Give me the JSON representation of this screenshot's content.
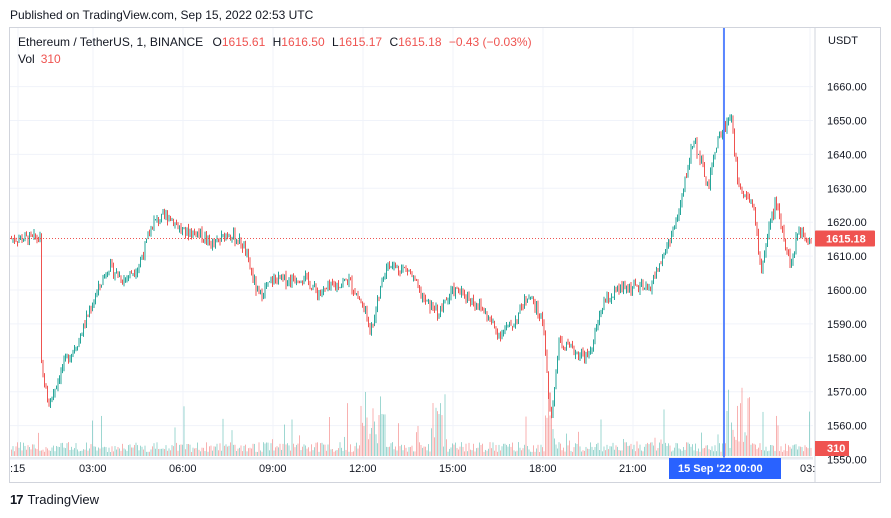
{
  "published": "Published on TradingView.com, Sep 15, 2022 02:53 UTC",
  "legend": {
    "symbol": "Ethereum / TetherUS, 1, BINANCE",
    "open_label": "O",
    "open": "1615.61",
    "high_label": "H",
    "high": "1616.50",
    "low_label": "L",
    "low": "1615.17",
    "close_label": "C",
    "close": "1615.18",
    "change": "−0.43 (−0.03%)",
    "vol_label": "Vol",
    "vol": "310"
  },
  "price_axis": {
    "currency": "USDT",
    "ticks": [
      "1660.00",
      "1650.00",
      "1640.00",
      "1630.00",
      "1620.00",
      "1610.00",
      "1600.00",
      "1590.00",
      "1580.00",
      "1570.00",
      "1560.00",
      "1550.00"
    ],
    "price_badge": "1615.18",
    "volume_badge": "310"
  },
  "time_axis": {
    "ticks": [
      ":15",
      "03:00",
      "06:00",
      "09:00",
      "12:00",
      "15:00",
      "18:00",
      "21:00",
      "03:"
    ],
    "crosshair_label": "15 Sep '22   00:00"
  },
  "footer": {
    "logo": "17",
    "brand": "TradingView"
  },
  "colors": {
    "up": "#26a69a",
    "down": "#ef5350",
    "crosshair": "#2962ff",
    "grid": "#f0f3fa",
    "up_volume": "#26a69a",
    "down_volume": "#ef5350"
  },
  "chart_data": {
    "type": "candlestick",
    "ylim": [
      1545,
      1662
    ],
    "current_price": 1615.18,
    "x_ticks": [
      "03:00",
      "06:00",
      "09:00",
      "12:00",
      "15:00",
      "18:00",
      "21:00",
      "00:00"
    ],
    "close_path": [
      {
        "t": "01:15",
        "p": 1578
      },
      {
        "t": "01:30",
        "p": 1566
      },
      {
        "t": "02:00",
        "p": 1578
      },
      {
        "t": "02:30",
        "p": 1585
      },
      {
        "t": "03:00",
        "p": 1597
      },
      {
        "t": "03:30",
        "p": 1607
      },
      {
        "t": "04:00",
        "p": 1603
      },
      {
        "t": "04:30",
        "p": 1607
      },
      {
        "t": "05:00",
        "p": 1620
      },
      {
        "t": "05:30",
        "p": 1622
      },
      {
        "t": "06:00",
        "p": 1617
      },
      {
        "t": "06:30",
        "p": 1617
      },
      {
        "t": "07:00",
        "p": 1613
      },
      {
        "t": "07:30",
        "p": 1617
      },
      {
        "t": "08:00",
        "p": 1613
      },
      {
        "t": "08:30",
        "p": 1598
      },
      {
        "t": "09:00",
        "p": 1603
      },
      {
        "t": "09:30",
        "p": 1603
      },
      {
        "t": "10:00",
        "p": 1604
      },
      {
        "t": "10:30",
        "p": 1599
      },
      {
        "t": "11:00",
        "p": 1601
      },
      {
        "t": "11:30",
        "p": 1603
      },
      {
        "t": "12:00",
        "p": 1595
      },
      {
        "t": "12:15",
        "p": 1588
      },
      {
        "t": "12:45",
        "p": 1607
      },
      {
        "t": "13:30",
        "p": 1606
      },
      {
        "t": "14:00",
        "p": 1597
      },
      {
        "t": "14:30",
        "p": 1593
      },
      {
        "t": "15:00",
        "p": 1600
      },
      {
        "t": "15:30",
        "p": 1598
      },
      {
        "t": "16:00",
        "p": 1594
      },
      {
        "t": "16:30",
        "p": 1587
      },
      {
        "t": "17:00",
        "p": 1590
      },
      {
        "t": "17:30",
        "p": 1599
      },
      {
        "t": "18:00",
        "p": 1590
      },
      {
        "t": "18:15",
        "p": 1560
      },
      {
        "t": "18:30",
        "p": 1584
      },
      {
        "t": "19:00",
        "p": 1582
      },
      {
        "t": "19:30",
        "p": 1580
      },
      {
        "t": "20:00",
        "p": 1596
      },
      {
        "t": "20:30",
        "p": 1600
      },
      {
        "t": "21:00",
        "p": 1601
      },
      {
        "t": "21:30",
        "p": 1600
      },
      {
        "t": "22:00",
        "p": 1610
      },
      {
        "t": "22:30",
        "p": 1622
      },
      {
        "t": "23:00",
        "p": 1645
      },
      {
        "t": "23:30",
        "p": 1630
      },
      {
        "t": "23:45",
        "p": 1643
      },
      {
        "t": "00:15",
        "p": 1652
      },
      {
        "t": "00:30",
        "p": 1630
      },
      {
        "t": "01:00",
        "p": 1625
      },
      {
        "t": "01:15",
        "p": 1605
      },
      {
        "t": "01:30",
        "p": 1618
      },
      {
        "t": "01:45",
        "p": 1626
      },
      {
        "t": "02:15",
        "p": 1607
      },
      {
        "t": "02:30",
        "p": 1618
      },
      {
        "t": "02:53",
        "p": 1615.18
      }
    ],
    "volume_peak": 310
  }
}
